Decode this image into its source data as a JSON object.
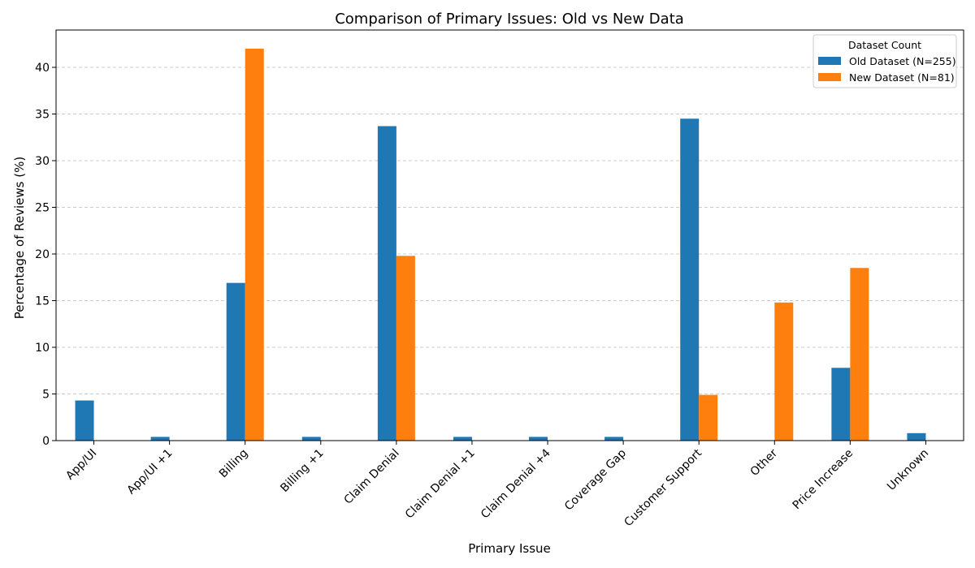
{
  "chart_data": {
    "type": "bar",
    "title": "Comparison of Primary Issues: Old vs New Data",
    "xlabel": "Primary Issue",
    "ylabel": "Percentage of Reviews (%)",
    "ylim": [
      0,
      44
    ],
    "yticks": [
      0,
      5,
      10,
      15,
      20,
      25,
      30,
      35,
      40
    ],
    "grid": "y-dashed",
    "legend_title": "Dataset Count",
    "legend_position": "top-right",
    "categories": [
      "App/UI",
      "App/UI +1",
      "Billing",
      "Billing +1",
      "Claim Denial",
      "Claim Denial +1",
      "Claim Denial +4",
      "Coverage Gap",
      "Customer Support",
      "Other",
      "Price Increase",
      "Unknown"
    ],
    "series": [
      {
        "name": "Old Dataset (N=255)",
        "color": "#1f77b4",
        "values": [
          4.3,
          0.4,
          16.9,
          0.4,
          33.7,
          0.4,
          0.4,
          0.4,
          34.5,
          0,
          7.8,
          0.8
        ]
      },
      {
        "name": "New Dataset (N=81)",
        "color": "#ff7f0e",
        "values": [
          0,
          0,
          42.0,
          0,
          19.8,
          0,
          0,
          0,
          4.9,
          14.8,
          18.5,
          0
        ]
      }
    ]
  }
}
